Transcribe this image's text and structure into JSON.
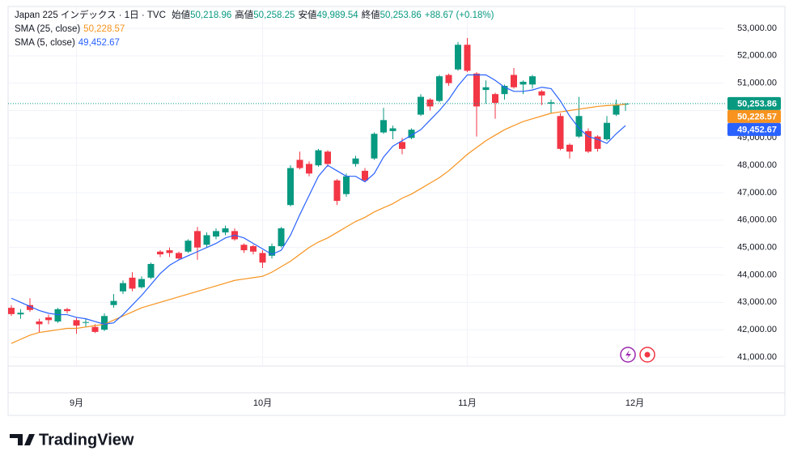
{
  "chart_data": {
    "type": "candlestick",
    "title": "Japan 225 インデックス · 1日 · TVC",
    "ohlc_header": [
      {
        "label": "始値",
        "value": "50,218.96"
      },
      {
        "label": "高値",
        "value": "50,258.25"
      },
      {
        "label": "安値",
        "value": "49,989.54"
      },
      {
        "label": "終値",
        "value": "50,253.86"
      }
    ],
    "change": "+88.67 (+0.18%)",
    "categories": [
      null,
      null,
      null,
      null,
      null,
      null,
      null,
      "9月",
      null,
      null,
      null,
      null,
      null,
      null,
      null,
      null,
      null,
      null,
      null,
      null,
      null,
      null,
      null,
      null,
      null,
      null,
      null,
      "10月",
      null,
      null,
      null,
      null,
      null,
      null,
      null,
      null,
      null,
      null,
      null,
      null,
      null,
      null,
      null,
      null,
      null,
      null,
      null,
      null,
      null,
      "11月",
      null,
      null,
      null,
      null,
      null,
      null,
      null,
      null,
      null,
      null,
      null,
      null,
      null,
      null,
      null,
      null,
      null,
      "12月"
    ],
    "candles": {
      "up_color": "#089981",
      "down_color": "#f23645",
      "last_label": "50,253.86",
      "open": [
        42800,
        42560,
        42900,
        42300,
        42450,
        42300,
        42750,
        42350,
        42250,
        42100,
        42000,
        42900,
        43400,
        43900,
        43550,
        43900,
        44850,
        44900,
        44800,
        44850,
        45600,
        45100,
        45400,
        45550,
        45600,
        45100,
        45050,
        44800,
        44700,
        45050,
        46550,
        48200,
        48050,
        48000,
        48500,
        47450,
        46950,
        48050,
        47800,
        48250,
        49200,
        49250,
        48850,
        49000,
        49850,
        50400,
        50350,
        51300,
        51500,
        52400,
        51350,
        50750,
        50600,
        50600,
        51300,
        50950,
        50950,
        50700,
        50250,
        49800,
        48750,
        49050,
        49250,
        49050,
        48950,
        49850,
        50218.96,
        null
      ],
      "high": [
        42900,
        42750,
        43150,
        42400,
        42550,
        42800,
        42800,
        42450,
        42400,
        42200,
        42600,
        43300,
        43800,
        44100,
        43950,
        44450,
        44900,
        45000,
        44850,
        45300,
        45750,
        45550,
        45700,
        45800,
        45700,
        45150,
        45100,
        44900,
        45150,
        45750,
        48000,
        48500,
        48150,
        48600,
        48550,
        47500,
        47700,
        48350,
        47900,
        49200,
        50100,
        49450,
        49000,
        49350,
        50600,
        50450,
        51300,
        51350,
        52500,
        52650,
        51400,
        51100,
        50650,
        50950,
        51550,
        51100,
        51300,
        50750,
        50400,
        49900,
        48800,
        50500,
        49350,
        49100,
        49800,
        50400,
        50258.25,
        null
      ],
      "low": [
        42500,
        42400,
        42650,
        41900,
        42200,
        42250,
        42600,
        41850,
        42100,
        41880,
        41950,
        42800,
        43300,
        43400,
        43500,
        43850,
        44650,
        44650,
        44550,
        44800,
        44550,
        45000,
        45300,
        45450,
        45250,
        44800,
        44750,
        44250,
        44600,
        45000,
        46500,
        47850,
        47600,
        47950,
        47950,
        46550,
        46850,
        47950,
        47400,
        48200,
        49150,
        48950,
        48400,
        48950,
        49800,
        50000,
        50300,
        50900,
        51450,
        51400,
        49050,
        50250,
        49700,
        50400,
        50800,
        50600,
        50800,
        50200,
        49900,
        48550,
        48250,
        49000,
        48450,
        48500,
        48900,
        49800,
        49989.54,
        null
      ],
      "close": [
        42570,
        42620,
        42720,
        42200,
        42350,
        42750,
        42680,
        42150,
        42280,
        41920,
        42500,
        43050,
        43700,
        43500,
        43850,
        44400,
        44750,
        44800,
        44600,
        45250,
        45000,
        45450,
        45600,
        45700,
        45300,
        44900,
        44850,
        44450,
        45050,
        45700,
        47900,
        47900,
        47700,
        48550,
        48050,
        46700,
        47600,
        48250,
        47450,
        49150,
        49650,
        49350,
        48600,
        49300,
        50500,
        50150,
        51250,
        51000,
        52400,
        51450,
        50150,
        50850,
        50280,
        50900,
        50850,
        51050,
        51250,
        50550,
        50300,
        48600,
        48500,
        49800,
        48500,
        48600,
        49550,
        50200,
        50253.86,
        null
      ]
    },
    "series": [
      {
        "name": "SMA (25, close)",
        "color": "#f7931e",
        "last_label": "50,228.57",
        "values": [
          41500,
          41650,
          41800,
          41900,
          41950,
          42000,
          42050,
          42050,
          42100,
          42150,
          42200,
          42350,
          42500,
          42650,
          42800,
          42900,
          43000,
          43100,
          43200,
          43300,
          43400,
          43500,
          43600,
          43700,
          43800,
          43850,
          43900,
          43950,
          44100,
          44300,
          44500,
          44750,
          45000,
          45200,
          45350,
          45550,
          45750,
          45950,
          46100,
          46300,
          46450,
          46600,
          46800,
          46950,
          47150,
          47350,
          47550,
          47800,
          48100,
          48400,
          48650,
          48900,
          49100,
          49300,
          49450,
          49600,
          49700,
          49800,
          49900,
          49950,
          50000,
          50050,
          50100,
          50150,
          50180,
          50200,
          50228.57,
          null
        ]
      },
      {
        "name": "SMA (5, close)",
        "color": "#2962ff",
        "last_label": "49,452.67",
        "values": [
          43150,
          43000,
          42850,
          42700,
          42600,
          42550,
          42550,
          42450,
          42400,
          42300,
          42200,
          42250,
          42550,
          42900,
          43250,
          43650,
          44050,
          44350,
          44550,
          44700,
          44850,
          45000,
          45150,
          45350,
          45450,
          45350,
          45150,
          44950,
          44750,
          44900,
          45450,
          46200,
          46900,
          47600,
          48000,
          47800,
          47600,
          47600,
          47400,
          47700,
          48300,
          48700,
          48900,
          49100,
          49300,
          49650,
          50000,
          50400,
          50900,
          51300,
          51300,
          51300,
          51100,
          50850,
          50700,
          50700,
          50750,
          50850,
          50800,
          50350,
          49800,
          49350,
          49050,
          48950,
          48800,
          49150,
          49452.67,
          null
        ]
      }
    ],
    "ylim": [
      40675,
      53443
    ],
    "yticks": [
      {
        "value": 41000,
        "label": "41,000.00"
      },
      {
        "value": 42000,
        "label": "42,000.00"
      },
      {
        "value": 43000,
        "label": "43,000.00"
      },
      {
        "value": 44000,
        "label": "44,000.00"
      },
      {
        "value": 45000,
        "label": "45,000.00"
      },
      {
        "value": 46000,
        "label": "46,000.00"
      },
      {
        "value": 47000,
        "label": "47,000.00"
      },
      {
        "value": 48000,
        "label": "48,000.00"
      },
      {
        "value": 49000,
        "label": "49,000.00"
      },
      {
        "value": 50000,
        "label": "50,000.00"
      },
      {
        "value": 51000,
        "label": "51,000.00"
      },
      {
        "value": 52000,
        "label": "52,000.00"
      },
      {
        "value": 53000,
        "label": "53,000.00"
      }
    ],
    "grid": true,
    "brand": "TradingView"
  }
}
